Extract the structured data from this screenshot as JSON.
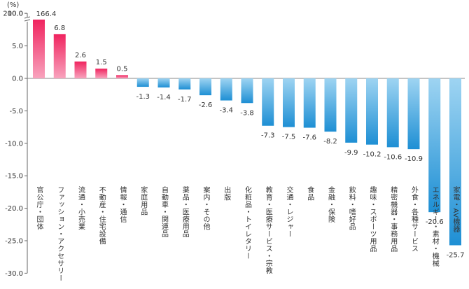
{
  "chart_data": {
    "type": "bar",
    "unit_label": "(%)",
    "categories": [
      "官公庁・団体",
      "ファッション・アクセサリー",
      "流通・小売業",
      "不動産・住宅設備",
      "情報・通信",
      "家庭用品",
      "自動車・関連品",
      "薬品・医療用品",
      "案内・その他",
      "出版",
      "化粧品・トイレタリー",
      "教育・医療サービス・宗教",
      "交通・レジャー",
      "食品",
      "金融・保険",
      "飲料・嗜好品",
      "趣味・スポーツ用品",
      "精密機器・事務用品",
      "外食・各種サービス",
      "エネルギー・素材・機械",
      "家電・AV機器"
    ],
    "values": [
      166.4,
      6.8,
      2.6,
      1.5,
      0.5,
      -1.3,
      -1.4,
      -1.7,
      -2.6,
      -3.4,
      -3.8,
      -7.3,
      -7.5,
      -7.6,
      -8.2,
      -9.9,
      -10.2,
      -10.6,
      -10.9,
      -20.6,
      -25.7
    ],
    "value_labels": [
      "166.4",
      "6.8",
      "2.6",
      "1.5",
      "0.5",
      "-1.3",
      "-1.4",
      "-1.7",
      "-2.6",
      "-3.4",
      "-3.8",
      "-7.3",
      "-7.5",
      "-7.6",
      "-8.2",
      "-9.9",
      "-10.2",
      "-10.6",
      "-10.9",
      "-20.6",
      "-25.7"
    ],
    "y_ticks": [
      "200.0",
      "20.0",
      "15.0",
      "10.0",
      "5.0",
      "0.0",
      "-5.0",
      "-10.0",
      "-15.0",
      "-20.0",
      "-25.0",
      "-30.0"
    ],
    "y_tick_values": [
      200,
      20,
      15,
      10,
      5,
      0,
      -5,
      -10,
      -15,
      -20,
      -25,
      -30
    ],
    "ylim": [
      -30,
      20
    ],
    "axis_break": {
      "below": 20,
      "above": 200
    },
    "grid": false,
    "legend": "none",
    "colors": {
      "positive_top": "#f0245f",
      "positive_bottom": "#f8a3bd",
      "negative_top": "#9ed4f2",
      "negative_bottom": "#1e8fd4",
      "axis": "#666666",
      "zero_line": "#888888",
      "text": "#333333"
    }
  }
}
